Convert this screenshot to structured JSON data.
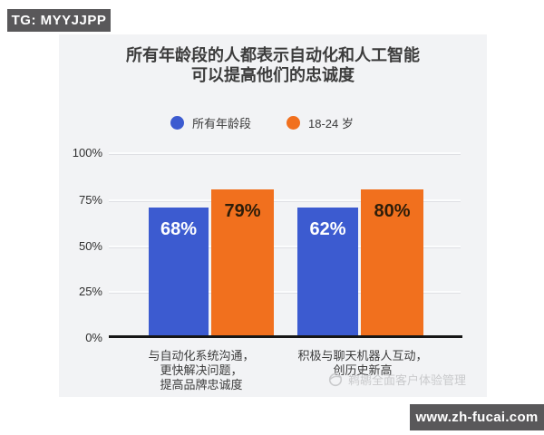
{
  "badges": {
    "telegram": "TG: MYYJJPP",
    "website": "www.zh-fucai.com"
  },
  "watermark": {
    "text": "鹈鹕全面客户体验管理",
    "icon": "pelican-logo-icon",
    "color": "#c9cacc"
  },
  "colors": {
    "card_background": "#f2f3f5",
    "badge_background": "#59585a",
    "series_blue": "#3c5bd0",
    "series_orange": "#f1701e",
    "axis_line": "#161616",
    "title_text": "#3c3c3c"
  },
  "chart_data": {
    "type": "bar",
    "title_lines": [
      "所有年龄段的人都表示自动化和人工智能",
      "可以提高他们的忠诚度"
    ],
    "title": "所有年龄段的人都表示自动化和人工智能可以提高他们的忠诚度",
    "legend_position": "top",
    "grid": true,
    "legend": [
      {
        "label": "所有年龄段",
        "color": "#3c5bd0"
      },
      {
        "label": "18-24 岁",
        "color": "#f1701e"
      }
    ],
    "categories": [
      {
        "lines": [
          "与自动化系统沟通，",
          "更快解决问题，",
          "提高品牌忠诚度"
        ]
      },
      {
        "lines": [
          "积极与聊天机器人互动，",
          "创历史新高"
        ]
      }
    ],
    "series": [
      {
        "name": "所有年龄段",
        "color": "#3c5bd0",
        "values": [
          68,
          62
        ]
      },
      {
        "name": "18-24 岁",
        "color": "#f1701e",
        "values": [
          79,
          80
        ]
      }
    ],
    "y_axis": {
      "ticks": [
        "100%",
        "75%",
        "50%",
        "25%",
        "0%"
      ],
      "min": 0,
      "max": 100,
      "unit": "%"
    },
    "bars_render": [
      {
        "series": 0,
        "category": 0,
        "value": 68,
        "label": "68%",
        "height_pct": 71
      },
      {
        "series": 1,
        "category": 0,
        "value": 79,
        "label": "79%",
        "height_pct": 80.5
      },
      {
        "series": 0,
        "category": 1,
        "value": 62,
        "label": "62%",
        "height_pct": 71
      },
      {
        "series": 1,
        "category": 1,
        "value": 80,
        "label": "80%",
        "height_pct": 80.5
      }
    ]
  }
}
